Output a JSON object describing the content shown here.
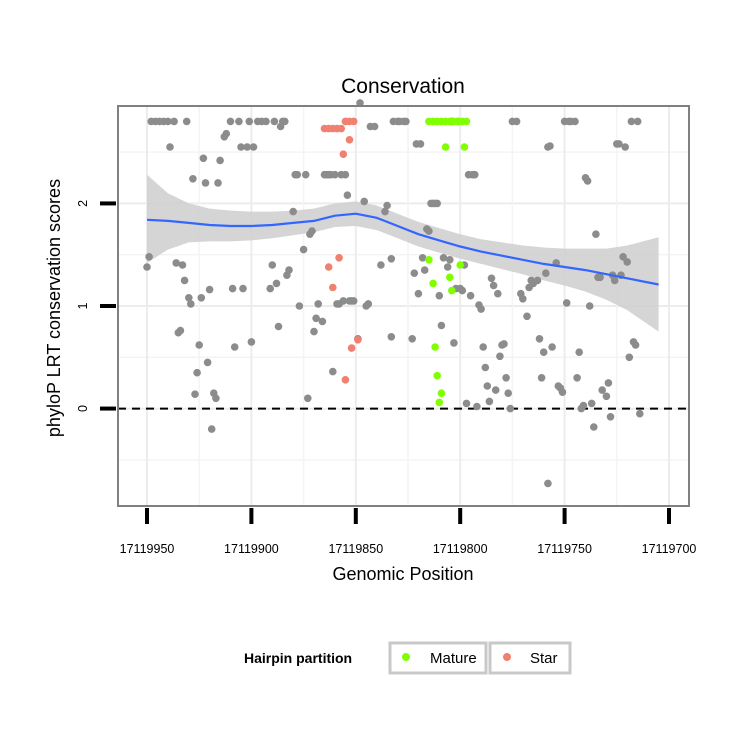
{
  "chart_data": {
    "type": "scatter",
    "title": "Conservation",
    "xlabel": "Genomic Position",
    "ylabel": "phyloP LRT conservation scores",
    "x_reversed": true,
    "xlim": [
      17119950,
      17119700
    ],
    "ylim": [
      -0.95,
      2.95
    ],
    "x_ticks": [
      17119950,
      17119900,
      17119850,
      17119800,
      17119750,
      17119700
    ],
    "x_tick_labels": [
      "17119950",
      "17119900",
      "17119850",
      "17119800",
      "17119750",
      "17119700"
    ],
    "y_ticks": [
      0,
      1,
      2
    ],
    "y_tick_labels": [
      "0",
      "1",
      "2"
    ],
    "reference_line": {
      "y": 0,
      "style": "dashed",
      "color": "#000000"
    },
    "grid": true,
    "legend": {
      "title": "Hairpin partition",
      "placement": "bottom",
      "entries": [
        {
          "label": "Mature",
          "color": "#7fff00"
        },
        {
          "label": "Star",
          "color": "#f08070"
        }
      ]
    },
    "colors": {
      "other": "#8c8c8c",
      "mature": "#7fff00",
      "star": "#f08070",
      "smooth_line": "#3366ff",
      "ribbon": "#d0d0d0"
    },
    "series": [
      {
        "name": "",
        "color": "#8c8c8c",
        "points": [
          [
            17119950,
            1.38
          ],
          [
            17119949,
            1.48
          ],
          [
            17119948,
            2.8
          ],
          [
            17119946,
            2.8
          ],
          [
            17119944,
            2.8
          ],
          [
            17119942,
            2.8
          ],
          [
            17119940,
            2.8
          ],
          [
            17119939,
            2.55
          ],
          [
            17119937,
            2.8
          ],
          [
            17119936,
            1.42
          ],
          [
            17119935,
            0.74
          ],
          [
            17119934,
            0.76
          ],
          [
            17119933,
            1.4
          ],
          [
            17119932,
            1.25
          ],
          [
            17119931,
            2.8
          ],
          [
            17119930,
            1.08
          ],
          [
            17119929,
            1.02
          ],
          [
            17119928,
            2.24
          ],
          [
            17119927,
            0.14
          ],
          [
            17119926,
            0.35
          ],
          [
            17119925,
            0.62
          ],
          [
            17119924,
            1.08
          ],
          [
            17119923,
            2.44
          ],
          [
            17119922,
            2.2
          ],
          [
            17119921,
            0.45
          ],
          [
            17119920,
            1.16
          ],
          [
            17119919,
            -0.2
          ],
          [
            17119918,
            0.15
          ],
          [
            17119917,
            0.1
          ],
          [
            17119916,
            2.2
          ],
          [
            17119915,
            2.42
          ],
          [
            17119913,
            2.65
          ],
          [
            17119912,
            2.68
          ],
          [
            17119910,
            2.8
          ],
          [
            17119909,
            1.17
          ],
          [
            17119908,
            0.6
          ],
          [
            17119906,
            2.8
          ],
          [
            17119905,
            2.55
          ],
          [
            17119904,
            1.17
          ],
          [
            17119902,
            2.55
          ],
          [
            17119901,
            2.8
          ],
          [
            17119900,
            0.65
          ],
          [
            17119899,
            2.55
          ],
          [
            17119897,
            2.8
          ],
          [
            17119895,
            2.8
          ],
          [
            17119893,
            2.8
          ],
          [
            17119891,
            1.17
          ],
          [
            17119890,
            1.4
          ],
          [
            17119889,
            2.8
          ],
          [
            17119888,
            1.22
          ],
          [
            17119887,
            0.8
          ],
          [
            17119886,
            2.75
          ],
          [
            17119885,
            2.8
          ],
          [
            17119884,
            2.8
          ],
          [
            17119883,
            1.3
          ],
          [
            17119882,
            1.35
          ],
          [
            17119880,
            1.92
          ],
          [
            17119879,
            2.28
          ],
          [
            17119878,
            2.28
          ],
          [
            17119877,
            1.0
          ],
          [
            17119875,
            1.55
          ],
          [
            17119874,
            2.28
          ],
          [
            17119873,
            0.1
          ],
          [
            17119872,
            1.7
          ],
          [
            17119871,
            1.73
          ],
          [
            17119870,
            0.75
          ],
          [
            17119869,
            0.88
          ],
          [
            17119868,
            1.02
          ],
          [
            17119866,
            0.85
          ],
          [
            17119865,
            2.28
          ],
          [
            17119864,
            2.28
          ],
          [
            17119863,
            2.28
          ],
          [
            17119862,
            2.28
          ],
          [
            17119861,
            0.36
          ],
          [
            17119860,
            2.28
          ],
          [
            17119859,
            1.02
          ],
          [
            17119858,
            1.02
          ],
          [
            17119857,
            2.28
          ],
          [
            17119856,
            1.05
          ],
          [
            17119855,
            2.28
          ],
          [
            17119854,
            2.08
          ],
          [
            17119853,
            1.05
          ],
          [
            17119852,
            1.05
          ],
          [
            17119851,
            1.05
          ],
          [
            17119849,
            0.68
          ],
          [
            17119848,
            2.98
          ],
          [
            17119846,
            2.02
          ],
          [
            17119845,
            1.0
          ],
          [
            17119844,
            1.02
          ],
          [
            17119843,
            2.75
          ],
          [
            17119841,
            2.75
          ],
          [
            17119838,
            1.4
          ],
          [
            17119836,
            1.92
          ],
          [
            17119835,
            1.98
          ],
          [
            17119833,
            1.46
          ],
          [
            17119832,
            2.8
          ],
          [
            17119830,
            2.8
          ],
          [
            17119829,
            2.8
          ],
          [
            17119827,
            2.8
          ],
          [
            17119826,
            2.8
          ],
          [
            17119823,
            0.68
          ],
          [
            17119822,
            1.32
          ],
          [
            17119821,
            2.58
          ],
          [
            17119820,
            1.12
          ],
          [
            17119819,
            2.58
          ],
          [
            17119818,
            1.47
          ],
          [
            17119817,
            1.35
          ],
          [
            17119816,
            1.75
          ],
          [
            17119815,
            1.73
          ],
          [
            17119814,
            2.0
          ],
          [
            17119813,
            2.0
          ],
          [
            17119812,
            2.0
          ],
          [
            17119811,
            2.0
          ],
          [
            17119810,
            1.1
          ],
          [
            17119809,
            0.81
          ],
          [
            17119808,
            1.47
          ],
          [
            17119806,
            1.38
          ],
          [
            17119805,
            1.45
          ],
          [
            17119804,
            2.8
          ],
          [
            17119803,
            0.64
          ],
          [
            17119802,
            1.17
          ],
          [
            17119801,
            2.8
          ],
          [
            17119800,
            1.17
          ],
          [
            17119799,
            1.15
          ],
          [
            17119798,
            1.4
          ],
          [
            17119797,
            0.05
          ],
          [
            17119796,
            2.28
          ],
          [
            17119795,
            1.1
          ],
          [
            17119794,
            2.28
          ],
          [
            17119793,
            2.28
          ],
          [
            17119792,
            0.02
          ],
          [
            17119791,
            1.01
          ],
          [
            17119790,
            0.97
          ],
          [
            17119789,
            0.6
          ],
          [
            17119788,
            0.4
          ],
          [
            17119787,
            0.22
          ],
          [
            17119786,
            0.07
          ],
          [
            17119785,
            1.27
          ],
          [
            17119784,
            1.2
          ],
          [
            17119783,
            0.18
          ],
          [
            17119782,
            1.12
          ],
          [
            17119781,
            0.51
          ],
          [
            17119780,
            0.62
          ],
          [
            17119779,
            0.63
          ],
          [
            17119778,
            0.3
          ],
          [
            17119777,
            0.15
          ],
          [
            17119776,
            0.0
          ],
          [
            17119775,
            2.8
          ],
          [
            17119773,
            2.8
          ],
          [
            17119771,
            1.12
          ],
          [
            17119770,
            1.07
          ],
          [
            17119768,
            0.9
          ],
          [
            17119767,
            1.18
          ],
          [
            17119766,
            1.25
          ],
          [
            17119765,
            1.22
          ],
          [
            17119763,
            1.25
          ],
          [
            17119762,
            0.68
          ],
          [
            17119761,
            0.3
          ],
          [
            17119760,
            0.55
          ],
          [
            17119759,
            1.32
          ],
          [
            17119758,
            2.55
          ],
          [
            17119757,
            2.56
          ],
          [
            17119756,
            0.6
          ],
          [
            17119754,
            1.42
          ],
          [
            17119753,
            0.22
          ],
          [
            17119752,
            0.2
          ],
          [
            17119751,
            0.16
          ],
          [
            17119750,
            2.8
          ],
          [
            17119749,
            1.03
          ],
          [
            17119748,
            2.8
          ],
          [
            17119747,
            2.8
          ],
          [
            17119745,
            2.8
          ],
          [
            17119744,
            0.3
          ],
          [
            17119743,
            0.55
          ],
          [
            17119742,
            0.0
          ],
          [
            17119741,
            0.03
          ],
          [
            17119740,
            2.25
          ],
          [
            17119739,
            2.22
          ],
          [
            17119738,
            1.0
          ],
          [
            17119737,
            0.05
          ],
          [
            17119736,
            -0.18
          ],
          [
            17119735,
            1.7
          ],
          [
            17119734,
            1.28
          ],
          [
            17119733,
            1.28
          ],
          [
            17119732,
            0.18
          ],
          [
            17119730,
            0.12
          ],
          [
            17119729,
            0.25
          ],
          [
            17119728,
            -0.08
          ],
          [
            17119727,
            1.3
          ],
          [
            17119726,
            1.25
          ],
          [
            17119725,
            2.58
          ],
          [
            17119724,
            2.58
          ],
          [
            17119723,
            1.3
          ],
          [
            17119722,
            1.48
          ],
          [
            17119721,
            2.55
          ],
          [
            17119720,
            1.43
          ],
          [
            17119719,
            0.5
          ],
          [
            17119718,
            2.8
          ],
          [
            17119717,
            0.65
          ],
          [
            17119716,
            0.62
          ],
          [
            17119715,
            2.8
          ],
          [
            17119714,
            -0.05
          ],
          [
            17119758,
            -0.73
          ],
          [
            17119833,
            0.7
          ]
        ]
      },
      {
        "name": "Mature",
        "color": "#7fff00",
        "points": [
          [
            17119815,
            2.8
          ],
          [
            17119813,
            2.8
          ],
          [
            17119811,
            2.8
          ],
          [
            17119809,
            2.8
          ],
          [
            17119807,
            2.8
          ],
          [
            17119805,
            2.8
          ],
          [
            17119803,
            2.8
          ],
          [
            17119801,
            2.8
          ],
          [
            17119799,
            2.8
          ],
          [
            17119797,
            2.8
          ],
          [
            17119807,
            2.55
          ],
          [
            17119798,
            2.55
          ],
          [
            17119815,
            1.45
          ],
          [
            17119813,
            1.22
          ],
          [
            17119812,
            0.6
          ],
          [
            17119811,
            0.32
          ],
          [
            17119810,
            0.06
          ],
          [
            17119809,
            0.15
          ],
          [
            17119805,
            1.28
          ],
          [
            17119804,
            1.15
          ],
          [
            17119800,
            1.4
          ]
        ]
      },
      {
        "name": "Star",
        "color": "#f08070",
        "points": [
          [
            17119865,
            2.73
          ],
          [
            17119863,
            2.73
          ],
          [
            17119861,
            2.73
          ],
          [
            17119859,
            2.73
          ],
          [
            17119857,
            2.73
          ],
          [
            17119855,
            2.8
          ],
          [
            17119853,
            2.8
          ],
          [
            17119851,
            2.8
          ],
          [
            17119856,
            2.48
          ],
          [
            17119853,
            2.62
          ],
          [
            17119863,
            1.38
          ],
          [
            17119861,
            1.18
          ],
          [
            17119858,
            1.47
          ],
          [
            17119855,
            0.28
          ],
          [
            17119852,
            0.59
          ],
          [
            17119849,
            0.67
          ]
        ]
      }
    ],
    "smooth": {
      "x": [
        17119950,
        17119940,
        17119930,
        17119920,
        17119910,
        17119900,
        17119890,
        17119880,
        17119870,
        17119860,
        17119850,
        17119840,
        17119830,
        17119820,
        17119810,
        17119800,
        17119790,
        17119780,
        17119770,
        17119760,
        17119750,
        17119740,
        17119730,
        17119720,
        17119705
      ],
      "y": [
        1.84,
        1.83,
        1.81,
        1.79,
        1.78,
        1.78,
        1.79,
        1.81,
        1.83,
        1.88,
        1.9,
        1.86,
        1.78,
        1.7,
        1.64,
        1.58,
        1.53,
        1.49,
        1.45,
        1.41,
        1.38,
        1.35,
        1.31,
        1.27,
        1.21
      ],
      "lower": [
        1.42,
        1.55,
        1.62,
        1.63,
        1.63,
        1.64,
        1.66,
        1.69,
        1.72,
        1.77,
        1.78,
        1.74,
        1.66,
        1.58,
        1.52,
        1.46,
        1.41,
        1.36,
        1.31,
        1.25,
        1.2,
        1.14,
        1.06,
        0.96,
        0.75
      ],
      "upper": [
        2.28,
        2.1,
        2.0,
        1.95,
        1.93,
        1.92,
        1.92,
        1.93,
        1.95,
        2.0,
        2.02,
        1.98,
        1.9,
        1.82,
        1.76,
        1.7,
        1.65,
        1.62,
        1.59,
        1.57,
        1.56,
        1.56,
        1.56,
        1.59,
        1.67
      ]
    }
  }
}
